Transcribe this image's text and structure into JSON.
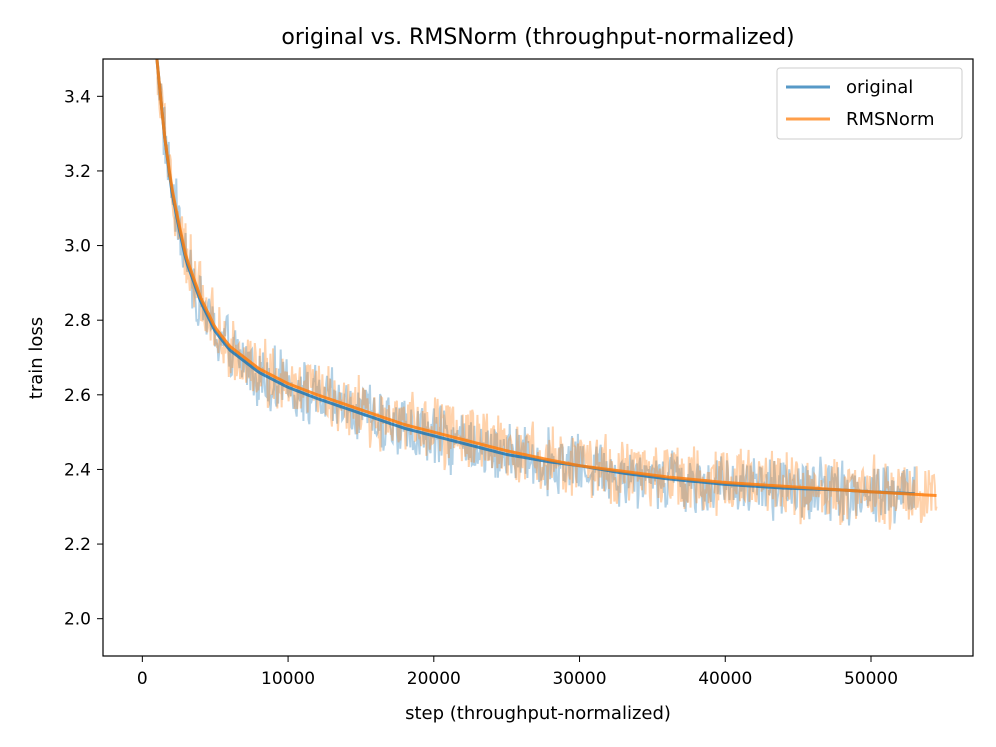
{
  "chart_data": {
    "type": "line",
    "title": "original vs. RMSNorm (throughput-normalized)",
    "xlabel": "step (throughput-normalized)",
    "ylabel": "train loss",
    "xlim": [
      -2700,
      57000
    ],
    "ylim": [
      1.9,
      3.5
    ],
    "xticks": [
      0,
      10000,
      20000,
      30000,
      40000,
      50000
    ],
    "xtick_labels": [
      "0",
      "10000",
      "20000",
      "30000",
      "40000",
      "50000"
    ],
    "yticks": [
      2.0,
      2.2,
      2.4,
      2.6,
      2.8,
      3.0,
      3.2,
      3.4
    ],
    "ytick_labels": [
      "2.0",
      "2.2",
      "2.4",
      "2.6",
      "2.8",
      "3.0",
      "3.2",
      "3.4"
    ],
    "grid": false,
    "legend_position": "upper right",
    "series": [
      {
        "name": "original",
        "color": "#1f77b4",
        "x": [
          1000,
          1500,
          2000,
          2500,
          3000,
          4000,
          5000,
          6000,
          8000,
          10000,
          12000,
          15000,
          18000,
          20000,
          22000,
          25000,
          28000,
          30000,
          33000,
          36000,
          40000,
          44000,
          48000,
          50000,
          53000
        ],
        "y": [
          3.5,
          3.3,
          3.15,
          3.05,
          2.96,
          2.85,
          2.77,
          2.72,
          2.66,
          2.62,
          2.59,
          2.55,
          2.51,
          2.49,
          2.47,
          2.44,
          2.42,
          2.41,
          2.39,
          2.375,
          2.36,
          2.35,
          2.345,
          2.34,
          2.335
        ],
        "noise_band": 0.075
      },
      {
        "name": "RMSNorm",
        "color": "#ff7f0e",
        "x": [
          1000,
          1500,
          2000,
          2500,
          3000,
          4000,
          5000,
          6000,
          8000,
          10000,
          12000,
          15000,
          18000,
          20000,
          22000,
          25000,
          28000,
          30000,
          33000,
          36000,
          40000,
          44000,
          48000,
          50000,
          54500
        ],
        "y": [
          3.5,
          3.3,
          3.16,
          3.06,
          2.97,
          2.86,
          2.78,
          2.73,
          2.67,
          2.63,
          2.6,
          2.56,
          2.52,
          2.5,
          2.48,
          2.45,
          2.425,
          2.41,
          2.395,
          2.38,
          2.365,
          2.355,
          2.345,
          2.34,
          2.33
        ],
        "noise_band": 0.08
      }
    ]
  }
}
